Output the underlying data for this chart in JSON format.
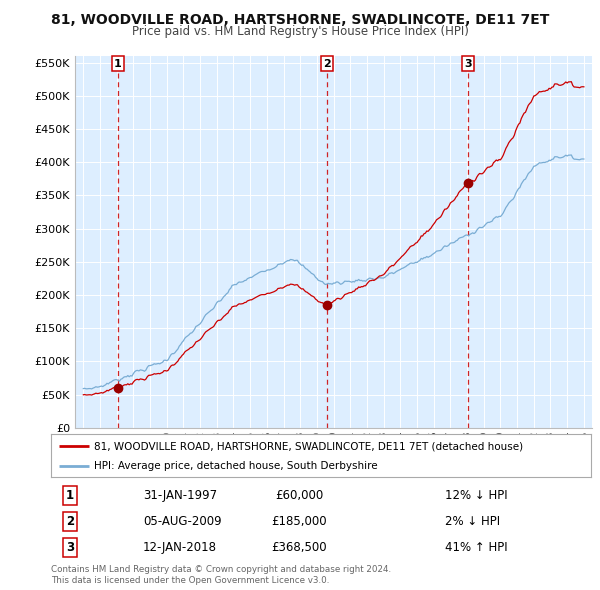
{
  "title": "81, WOODVILLE ROAD, HARTSHORNE, SWADLINCOTE, DE11 7ET",
  "subtitle": "Price paid vs. HM Land Registry's House Price Index (HPI)",
  "sales": [
    {
      "date_num": 1997.08,
      "price": 60000,
      "label": "1"
    },
    {
      "date_num": 2009.59,
      "price": 185000,
      "label": "2"
    },
    {
      "date_num": 2018.04,
      "price": 368500,
      "label": "3"
    }
  ],
  "hpi_line_color": "#7aadd4",
  "sale_line_color": "#cc0000",
  "sale_dot_color": "#990000",
  "vline_color": "#cc0000",
  "background_color": "#ddeeff",
  "ylim": [
    0,
    560000
  ],
  "xlim": [
    1994.5,
    2025.5
  ],
  "yticks": [
    0,
    50000,
    100000,
    150000,
    200000,
    250000,
    300000,
    350000,
    400000,
    450000,
    500000,
    550000
  ],
  "xticks": [
    1995,
    1996,
    1997,
    1998,
    1999,
    2000,
    2001,
    2002,
    2003,
    2004,
    2005,
    2006,
    2007,
    2008,
    2009,
    2010,
    2011,
    2012,
    2013,
    2014,
    2015,
    2016,
    2017,
    2018,
    2019,
    2020,
    2021,
    2022,
    2023,
    2024,
    2025
  ],
  "legend_items": [
    {
      "label": "81, WOODVILLE ROAD, HARTSHORNE, SWADLINCOTE, DE11 7ET (detached house)",
      "color": "#cc0000"
    },
    {
      "label": "HPI: Average price, detached house, South Derbyshire",
      "color": "#7aadd4"
    }
  ],
  "table_rows": [
    {
      "num": "1",
      "date": "31-JAN-1997",
      "price": "£60,000",
      "hpi": "12% ↓ HPI"
    },
    {
      "num": "2",
      "date": "05-AUG-2009",
      "price": "£185,000",
      "hpi": "2% ↓ HPI"
    },
    {
      "num": "3",
      "date": "12-JAN-2018",
      "price": "£368,500",
      "hpi": "41% ↑ HPI"
    }
  ],
  "footnote": "Contains HM Land Registry data © Crown copyright and database right 2024.\nThis data is licensed under the Open Government Licence v3.0."
}
